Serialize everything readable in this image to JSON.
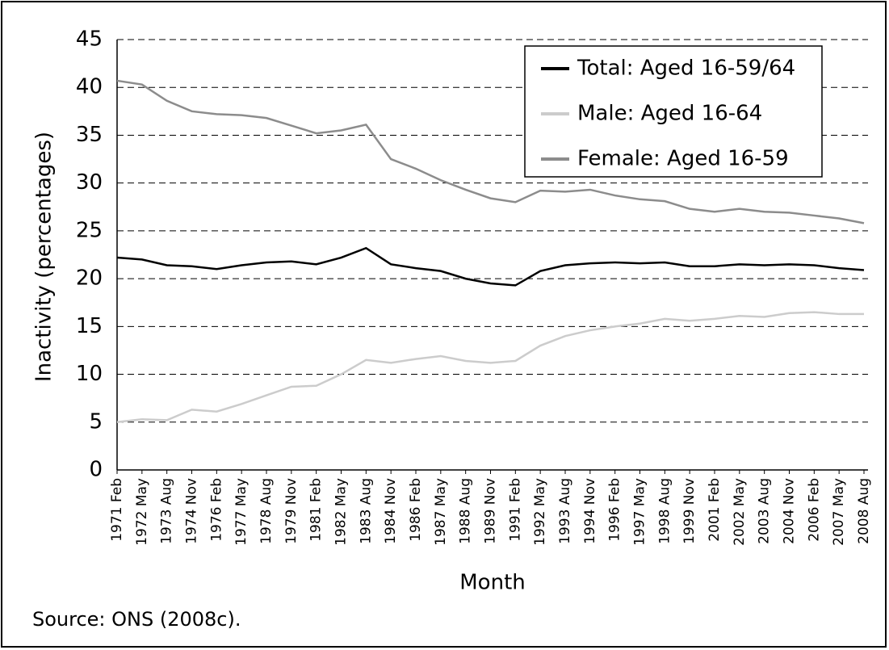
{
  "chart_data": {
    "type": "line",
    "x_label": "Month",
    "y_label": "Inactivity (percentages)",
    "note": "Source: ONS (2008c).",
    "categories": [
      "1971 Feb",
      "1972 May",
      "1973 Aug",
      "1974 Nov",
      "1976 Feb",
      "1977 May",
      "1978 Aug",
      "1979 Nov",
      "1981 Feb",
      "1982 May",
      "1983 Aug",
      "1984 Nov",
      "1986 Feb",
      "1987 May",
      "1988 Aug",
      "1989 Nov",
      "1991 Feb",
      "1992 May",
      "1993 Aug",
      "1994 Nov",
      "1996 Feb",
      "1997 May",
      "1998 Aug",
      "1999 Nov",
      "2001 Feb",
      "2002 May",
      "2003 Aug",
      "2004 Nov",
      "2006 Feb",
      "2007 May",
      "2008 Aug"
    ],
    "series": [
      {
        "name": "Total: Aged 16-59/64",
        "color": "#000000",
        "values": [
          22.2,
          22.0,
          21.4,
          21.3,
          21.0,
          21.4,
          21.7,
          21.8,
          21.5,
          22.2,
          23.2,
          21.5,
          21.1,
          20.8,
          20.0,
          19.5,
          19.3,
          20.8,
          21.4,
          21.6,
          21.7,
          21.6,
          21.7,
          21.3,
          21.3,
          21.5,
          21.4,
          21.5,
          21.4,
          21.1,
          20.9
        ]
      },
      {
        "name": "Male: Aged 16-64",
        "color": "#cccccc",
        "values": [
          5.0,
          5.3,
          5.2,
          6.3,
          6.1,
          6.9,
          7.8,
          8.7,
          8.8,
          10.0,
          11.5,
          11.2,
          11.6,
          11.9,
          11.4,
          11.2,
          11.4,
          13.0,
          14.0,
          14.6,
          15.0,
          15.3,
          15.8,
          15.6,
          15.8,
          16.1,
          16.0,
          16.4,
          16.5,
          16.3,
          16.3
        ]
      },
      {
        "name": "Female: Aged 16-59",
        "color": "#8c8c8c",
        "values": [
          40.7,
          40.3,
          38.6,
          37.5,
          37.2,
          37.1,
          36.8,
          36.0,
          35.2,
          35.5,
          36.1,
          32.5,
          31.5,
          30.3,
          29.3,
          28.4,
          28.0,
          29.2,
          29.1,
          29.3,
          28.7,
          28.3,
          28.1,
          27.3,
          27.0,
          27.3,
          27.0,
          26.9,
          26.6,
          26.3,
          25.8
        ]
      }
    ],
    "ylim": [
      0,
      45
    ],
    "yticks": [
      0,
      5,
      10,
      15,
      20,
      25,
      30,
      35,
      40,
      45
    ],
    "grid": true,
    "legend": "top-right"
  }
}
